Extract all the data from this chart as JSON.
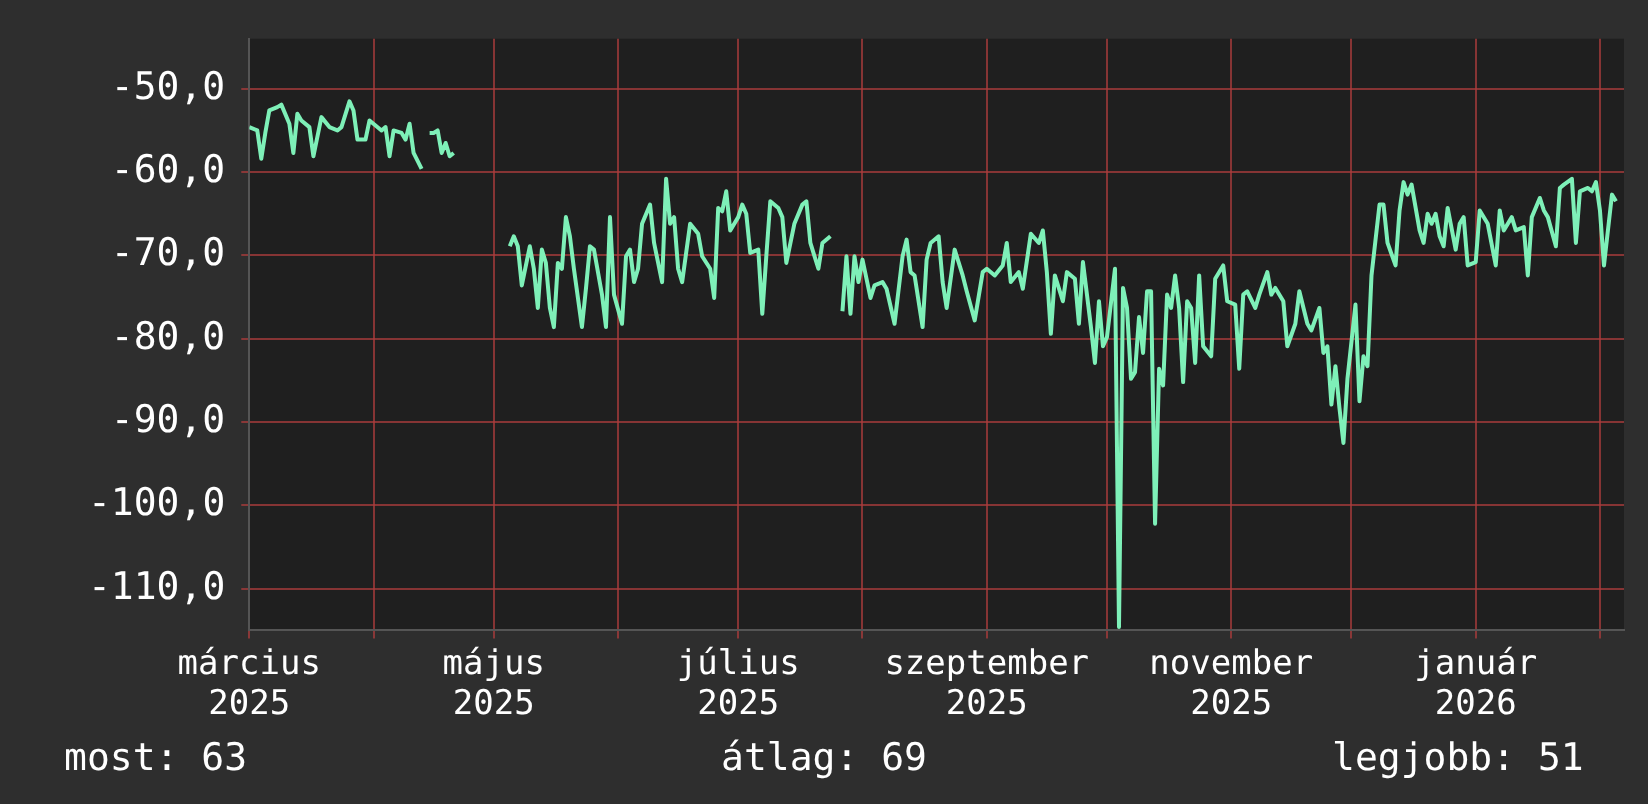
{
  "chart_data": {
    "type": "line",
    "x": [
      "2025-03-01",
      "2025-03-03",
      "2025-03-04",
      "2025-03-05",
      "2025-03-06",
      "2025-03-08",
      "2025-03-09",
      "2025-03-11",
      "2025-03-12",
      "2025-03-13",
      "2025-03-14",
      "2025-03-16",
      "2025-03-17",
      "2025-03-19",
      "2025-03-21",
      "2025-03-23",
      "2025-03-24",
      "2025-03-26",
      "2025-03-27",
      "2025-03-28",
      "2025-03-30",
      "2025-03-31",
      "2025-04-03",
      "2025-04-04",
      "2025-04-05",
      "2025-04-06",
      "2025-04-08",
      "2025-04-09",
      "2025-04-10",
      "2025-04-11",
      "2025-04-13",
      "2025-04-14",
      "2025-04-15",
      "2025-04-16",
      "2025-04-17",
      "2025-04-18",
      "2025-04-19",
      "2025-04-20",
      "2025-04-21",
      "2025-04-22",
      "2025-05-05",
      "2025-05-06",
      "2025-05-07",
      "2025-05-08",
      "2025-05-10",
      "2025-05-11",
      "2025-05-12",
      "2025-05-13",
      "2025-05-14",
      "2025-05-15",
      "2025-05-16",
      "2025-05-17",
      "2025-05-18",
      "2025-05-19",
      "2025-05-20",
      "2025-05-21",
      "2025-05-23",
      "2025-05-24",
      "2025-05-25",
      "2025-05-26",
      "2025-05-28",
      "2025-05-29",
      "2025-05-30",
      "2025-05-31",
      "2025-06-02",
      "2025-06-03",
      "2025-06-04",
      "2025-06-05",
      "2025-06-06",
      "2025-06-07",
      "2025-06-09",
      "2025-06-10",
      "2025-06-12",
      "2025-06-13",
      "2025-06-14",
      "2025-06-15",
      "2025-06-16",
      "2025-06-17",
      "2025-06-19",
      "2025-06-21",
      "2025-06-22",
      "2025-06-24",
      "2025-06-25",
      "2025-06-26",
      "2025-06-27",
      "2025-06-28",
      "2025-06-29",
      "2025-07-01",
      "2025-07-02",
      "2025-07-03",
      "2025-07-04",
      "2025-07-06",
      "2025-07-07",
      "2025-07-08",
      "2025-07-09",
      "2025-07-11",
      "2025-07-12",
      "2025-07-13",
      "2025-07-15",
      "2025-07-17",
      "2025-07-18",
      "2025-07-19",
      "2025-07-21",
      "2025-07-22",
      "2025-07-24",
      "2025-07-25",
      "2025-07-27",
      "2025-07-28",
      "2025-07-29",
      "2025-07-30",
      "2025-07-31",
      "2025-08-01",
      "2025-08-03",
      "2025-08-04",
      "2025-08-06",
      "2025-08-07",
      "2025-08-09",
      "2025-08-11",
      "2025-08-12",
      "2025-08-13",
      "2025-08-14",
      "2025-08-16",
      "2025-08-17",
      "2025-08-18",
      "2025-08-20",
      "2025-08-21",
      "2025-08-22",
      "2025-08-24",
      "2025-08-26",
      "2025-08-27",
      "2025-08-29",
      "2025-08-31",
      "2025-09-01",
      "2025-09-03",
      "2025-09-05",
      "2025-09-06",
      "2025-09-07",
      "2025-09-09",
      "2025-09-10",
      "2025-09-12",
      "2025-09-14",
      "2025-09-15",
      "2025-09-16",
      "2025-09-17",
      "2025-09-18",
      "2025-09-20",
      "2025-09-21",
      "2025-09-23",
      "2025-09-24",
      "2025-09-25",
      "2025-09-27",
      "2025-09-28",
      "2025-09-29",
      "2025-09-30",
      "2025-10-01",
      "2025-10-03",
      "2025-10-04",
      "2025-10-05",
      "2025-10-06",
      "2025-10-07",
      "2025-10-08",
      "2025-10-09",
      "2025-10-10",
      "2025-10-11",
      "2025-10-12",
      "2025-10-13",
      "2025-10-14",
      "2025-10-15",
      "2025-10-16",
      "2025-10-17",
      "2025-10-18",
      "2025-10-19",
      "2025-10-20",
      "2025-10-21",
      "2025-10-22",
      "2025-10-23",
      "2025-10-24",
      "2025-10-25",
      "2025-10-27",
      "2025-10-28",
      "2025-10-30",
      "2025-10-31",
      "2025-11-02",
      "2025-11-03",
      "2025-11-04",
      "2025-11-05",
      "2025-11-07",
      "2025-11-08",
      "2025-11-10",
      "2025-11-11",
      "2025-11-12",
      "2025-11-14",
      "2025-11-15",
      "2025-11-17",
      "2025-11-18",
      "2025-11-20",
      "2025-11-21",
      "2025-11-23",
      "2025-11-24",
      "2025-11-25",
      "2025-11-26",
      "2025-11-27",
      "2025-11-28",
      "2025-11-29",
      "2025-11-30",
      "2025-12-02",
      "2025-12-03",
      "2025-12-04",
      "2025-12-05",
      "2025-12-06",
      "2025-12-08",
      "2025-12-09",
      "2025-12-10",
      "2025-12-12",
      "2025-12-13",
      "2025-12-14",
      "2025-12-15",
      "2025-12-16",
      "2025-12-18",
      "2025-12-19",
      "2025-12-20",
      "2025-12-21",
      "2025-12-22",
      "2025-12-23",
      "2025-12-24",
      "2025-12-25",
      "2025-12-27",
      "2025-12-28",
      "2025-12-29",
      "2025-12-30",
      "2026-01-01",
      "2026-01-02",
      "2026-01-04",
      "2026-01-06",
      "2026-01-07",
      "2026-01-08",
      "2026-01-10",
      "2026-01-11",
      "2026-01-13",
      "2026-01-14",
      "2026-01-15",
      "2026-01-17",
      "2026-01-18",
      "2026-01-19",
      "2026-01-21",
      "2026-01-22",
      "2026-01-23",
      "2026-01-25",
      "2026-01-26",
      "2026-01-27",
      "2026-01-29",
      "2026-01-30",
      "2026-01-31",
      "2026-02-01",
      "2026-02-02",
      "2026-02-04",
      "2026-02-05"
    ],
    "series": [
      {
        "color": "#7ef0b8",
        "values": [
          -54.6,
          -55.0,
          -58.4,
          -55.3,
          -52.6,
          -52.2,
          -51.9,
          -54.2,
          -57.7,
          -53.0,
          -53.8,
          -54.6,
          -58.1,
          -53.4,
          -54.6,
          -55.0,
          -54.6,
          -51.5,
          -52.6,
          -56.1,
          -56.1,
          -53.8,
          -55.0,
          -54.6,
          -58.1,
          -55.0,
          -55.3,
          -56.1,
          -54.2,
          -57.7,
          -59.6,
          null,
          -55.3,
          -55.3,
          -55.0,
          -57.7,
          -56.5,
          -58.1,
          -57.7,
          null,
          -68.9,
          -67.7,
          -68.9,
          -73.6,
          -68.9,
          -71.6,
          -76.3,
          -69.3,
          -70.9,
          -76.3,
          -78.6,
          -70.9,
          -71.6,
          -65.4,
          -67.7,
          -71.6,
          -78.6,
          -74.0,
          -68.9,
          -69.3,
          -74.7,
          -78.6,
          -65.4,
          -74.7,
          -78.2,
          -70.1,
          -69.3,
          -73.2,
          -71.6,
          -66.2,
          -63.9,
          -68.5,
          -73.2,
          -60.8,
          -66.2,
          -65.4,
          -71.6,
          -73.2,
          -66.2,
          -67.4,
          -70.1,
          -71.6,
          -75.1,
          -64.3,
          -64.7,
          -62.3,
          -67.0,
          -65.4,
          -63.9,
          -65.0,
          -69.7,
          -69.3,
          -77.0,
          -70.1,
          -63.5,
          -64.3,
          -65.4,
          -70.9,
          -66.2,
          -63.9,
          -63.5,
          -68.5,
          -71.6,
          -68.5,
          -67.7,
          null,
          -76.7,
          -70.1,
          -77.0,
          -70.1,
          -73.2,
          -70.5,
          -75.1,
          -73.6,
          -73.2,
          -74.0,
          -78.2,
          -70.1,
          -68.1,
          -72.0,
          -72.4,
          -78.6,
          -70.5,
          -68.5,
          -67.7,
          -73.2,
          -76.3,
          -69.3,
          -72.4,
          -74.3,
          -77.8,
          -72.0,
          -71.6,
          -72.4,
          -71.2,
          -68.5,
          -73.2,
          -72.0,
          -74.0,
          -67.4,
          -68.5,
          -67.0,
          -72.0,
          -79.4,
          -72.4,
          -75.5,
          -72.0,
          -72.8,
          -78.2,
          -70.8,
          -78.6,
          -82.9,
          -75.5,
          -80.9,
          -79.8,
          -71.6,
          -114.6,
          -73.9,
          -76.3,
          -84.8,
          -84.0,
          -77.4,
          -81.7,
          -74.3,
          -74.3,
          -102.2,
          -83.6,
          -85.6,
          -74.7,
          -76.3,
          -72.4,
          -76.3,
          -85.2,
          -75.5,
          -76.3,
          -82.9,
          -72.4,
          -80.9,
          -82.1,
          -72.8,
          -71.2,
          -75.5,
          -75.9,
          -83.6,
          -74.7,
          -74.3,
          -76.3,
          -74.7,
          -72.0,
          -74.7,
          -73.9,
          -75.5,
          -80.9,
          -78.2,
          -74.3,
          -78.2,
          -79.0,
          -76.3,
          -81.7,
          -80.9,
          -87.9,
          -83.3,
          -88.3,
          -92.5,
          -84.8,
          -75.9,
          -87.5,
          -82.1,
          -83.3,
          -72.4,
          -63.9,
          -63.9,
          -68.5,
          -71.2,
          -64.6,
          -61.2,
          -62.7,
          -61.5,
          -67.0,
          -68.5,
          -65.0,
          -66.2,
          -65.0,
          -67.7,
          -68.9,
          -64.3,
          -69.3,
          -66.2,
          -65.4,
          -71.2,
          -70.8,
          -64.6,
          -66.2,
          -71.2,
          -64.6,
          -67.0,
          -65.4,
          -67.0,
          -66.6,
          -72.4,
          -65.4,
          -63.1,
          -64.6,
          -65.4,
          -68.9,
          -61.9,
          -61.5,
          -60.8,
          -68.5,
          -62.3,
          -61.9,
          -62.3,
          -61.2,
          -64.6,
          -71.2,
          -62.7,
          -63.5
        ]
      }
    ],
    "xlim": [
      "2025-03-01",
      "2026-02-07"
    ],
    "xticks": [
      {
        "value": "2025-03-01",
        "label": "március 2025"
      },
      {
        "value": "2025-04-01",
        "label": null
      },
      {
        "value": "2025-05-01",
        "label": "május 2025"
      },
      {
        "value": "2025-06-01",
        "label": null
      },
      {
        "value": "2025-07-01",
        "label": "július 2025"
      },
      {
        "value": "2025-08-01",
        "label": null
      },
      {
        "value": "2025-09-01",
        "label": "szeptember 2025"
      },
      {
        "value": "2025-10-01",
        "label": null
      },
      {
        "value": "2025-11-01",
        "label": "november 2025"
      },
      {
        "value": "2025-12-01",
        "label": null
      },
      {
        "value": "2026-01-01",
        "label": "január 2026"
      },
      {
        "value": "2026-02-01",
        "label": null
      }
    ],
    "ylim": [
      -115,
      -44
    ],
    "yticks": [
      {
        "value": -50,
        "label": "-50,0"
      },
      {
        "value": -60,
        "label": "-60,0"
      },
      {
        "value": -70,
        "label": "-70,0"
      },
      {
        "value": -80,
        "label": "-80,0"
      },
      {
        "value": -90,
        "label": "-90,0"
      },
      {
        "value": -100,
        "label": "-100,0"
      },
      {
        "value": -110,
        "label": "-110,0"
      }
    ],
    "grid": true,
    "annotations": [
      "most: 63",
      "átlag: 69",
      "legjobb: 51"
    ]
  }
}
